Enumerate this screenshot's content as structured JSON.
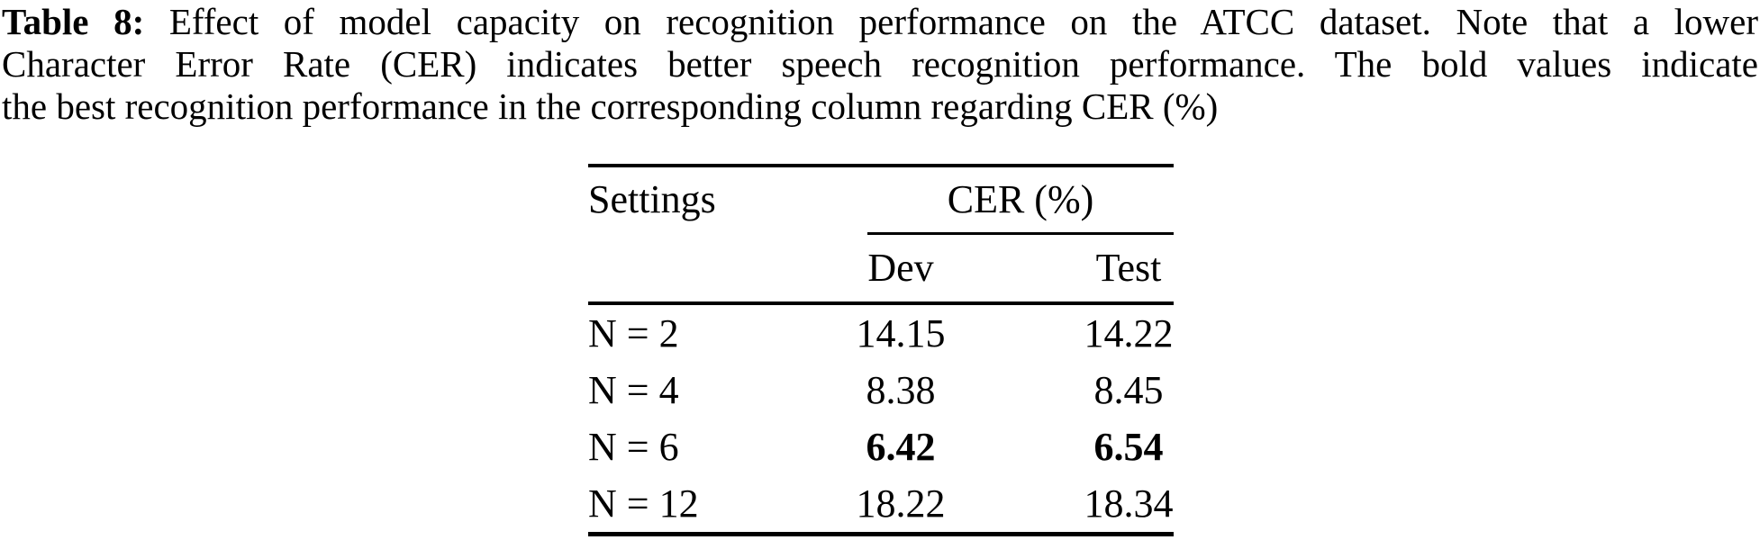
{
  "caption": {
    "label": "Table 8:",
    "line1_rest": "Effect of model capacity on recognition performance on the ATCC dataset. Note that a lower",
    "line2": "Character Error Rate (CER) indicates better speech recognition performance. The bold values indicate",
    "line3": "the best recognition performance in the corresponding column regarding CER (%)"
  },
  "table": {
    "header": {
      "settings": "Settings",
      "cer_group": "CER (%)",
      "dev": "Dev",
      "test": "Test"
    },
    "rows": [
      {
        "setting": "N = 2",
        "dev": "14.15",
        "test": "14.22"
      },
      {
        "setting": "N = 4",
        "dev": "8.38",
        "test": "8.45"
      },
      {
        "setting": "N = 6",
        "dev": "6.42",
        "test": "6.54"
      },
      {
        "setting": "N = 12",
        "dev": "18.22",
        "test": "18.34"
      }
    ],
    "bold_row_index": 2
  },
  "colors": {
    "text": "#000000",
    "background": "#ffffff",
    "rule": "#000000"
  }
}
